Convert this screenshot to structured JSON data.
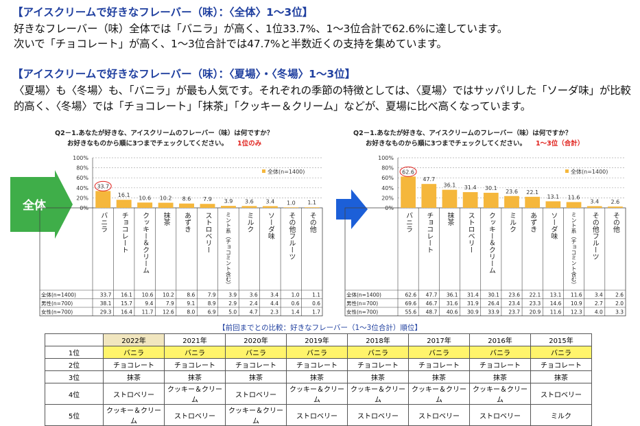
{
  "sections": [
    {
      "heading": "【アイスクリームで好きなフレーバー（味）：〈全体〉1～3位】",
      "lines": [
        "好きなフレーバー（味）全体では「バニラ」が高く、1位33.7%、1～3位合計で62.6%に達しています。",
        "次いで「チョコレート」が高く、1～3位合計では47.7%と半数近くの支持を集めています。"
      ]
    },
    {
      "heading": "【アイスクリームで好きなフレーバー（味）：〈夏場〉・〈冬場〉1～3位】",
      "lines": [
        "〈夏場〉も〈冬場〉も、「バニラ」が最も人気です。それぞれの季節の特徴としては、〈夏場〉ではサッパリした「ソーダ味」が比較",
        "的高く、〈冬場〉では「チョコレート」「抹茶」「クッキー＆クリーム」などが、夏場に比べ高くなっています。"
      ]
    }
  ],
  "badge": "全体",
  "charts": [
    {
      "type": "bar",
      "title_lines": [
        "Q2－1.あなたが好きな、アイスクリームのフレーバー（味）は何ですか？",
        "お好きなものから順に3つまでチェックしてください。"
      ],
      "note": "1位のみ",
      "legend": "全体(n=1400)",
      "color": "#f5b73c",
      "categories": [
        "バニラ",
        "チョコレート",
        "クッキー＆クリーム",
        "抹茶",
        "あずき",
        "ストロベリー",
        "ミント系（チョコミント含む）",
        "ミルク",
        "ソーダ味",
        "その他フルーツ",
        "その他"
      ],
      "values": [
        33.7,
        16.1,
        10.6,
        10.2,
        8.6,
        7.9,
        3.9,
        3.6,
        3.4,
        1.0,
        1.1
      ],
      "value_labels": [
        "33.7",
        "16.1",
        "10.6",
        "10.2",
        "8.6",
        "7.9",
        "3.9",
        "3.6",
        "3.4",
        "1.0",
        "1.1"
      ],
      "ylim": [
        0,
        100
      ],
      "yticks": [
        {
          "value": 0,
          "label": "0%"
        },
        {
          "value": 20,
          "label": "20%"
        },
        {
          "value": 40,
          "label": "40%"
        },
        {
          "value": 60,
          "label": "60%"
        },
        {
          "value": 80,
          "label": "80%"
        },
        {
          "value": 100,
          "label": "100%"
        }
      ],
      "grid": true,
      "table": [
        {
          "label": "全体(n=1400)",
          "values": [
            "33.7",
            "16.1",
            "10.6",
            "10.2",
            "8.6",
            "7.9",
            "3.9",
            "3.6",
            "3.4",
            "1.0",
            "1.1"
          ]
        },
        {
          "label": "男性(n=700)",
          "values": [
            "38.1",
            "15.7",
            "9.4",
            "7.9",
            "9.1",
            "8.9",
            "2.9",
            "2.4",
            "4.4",
            "0.6",
            "0.6"
          ]
        },
        {
          "label": "女性(n=700)",
          "values": [
            "29.3",
            "16.4",
            "11.7",
            "12.6",
            "8.0",
            "6.9",
            "5.0",
            "4.7",
            "2.3",
            "1.4",
            "1.7"
          ]
        }
      ]
    },
    {
      "type": "bar",
      "title_lines": [
        "Q2－1.あなたが好きな、アイスクリームのフレーバー（味）は何ですか？",
        "お好きなものから順に3つまでチェックしてください。"
      ],
      "note": "1～3位（合計）",
      "legend": "全体(n=1400)",
      "color": "#f5b73c",
      "categories": [
        "バニラ",
        "チョコレート",
        "抹茶",
        "ストロベリー",
        "クッキー＆クリーム",
        "ミルク",
        "あずき",
        "ソーダ味",
        "ミント系（チョコミント含む）",
        "その他フルーツ",
        "その他"
      ],
      "values": [
        62.6,
        47.7,
        36.1,
        31.4,
        30.1,
        23.6,
        22.1,
        13.1,
        11.6,
        3.4,
        2.6
      ],
      "value_labels": [
        "62.6",
        "47.7",
        "36.1",
        "31.4",
        "30.1",
        "23.6",
        "22.1",
        "13.1",
        "11.6",
        "3.4",
        "2.6"
      ],
      "ylim": [
        0,
        100
      ],
      "yticks": [
        {
          "value": 0,
          "label": "0%"
        },
        {
          "value": 20,
          "label": "20%"
        },
        {
          "value": 40,
          "label": "40%"
        },
        {
          "value": 60,
          "label": "60%"
        },
        {
          "value": 80,
          "label": "80%"
        },
        {
          "value": 100,
          "label": "100%"
        }
      ],
      "grid": true,
      "table": [
        {
          "label": "全体(n=1400)",
          "values": [
            "62.6",
            "47.7",
            "36.1",
            "31.4",
            "30.1",
            "23.6",
            "22.1",
            "13.1",
            "11.6",
            "3.4",
            "2.6"
          ]
        },
        {
          "label": "男性(n=700)",
          "values": [
            "69.6",
            "46.7",
            "31.6",
            "31.9",
            "26.4",
            "23.4",
            "23.3",
            "14.6",
            "10.9",
            "2.7",
            "2.0"
          ]
        },
        {
          "label": "女性(n=700)",
          "values": [
            "55.6",
            "48.7",
            "40.6",
            "30.9",
            "33.9",
            "23.7",
            "20.9",
            "11.6",
            "12.3",
            "4.0",
            "3.3"
          ]
        }
      ]
    }
  ],
  "ranking": {
    "title": "【前回までとの比較：好きなフレーバー（1～3位合計）順位】",
    "years": [
      "2022年",
      "2021年",
      "2020年",
      "2019年",
      "2018年",
      "2017年",
      "2016年",
      "2015年"
    ],
    "rows": [
      {
        "rank": "1位",
        "items": [
          "バニラ",
          "バニラ",
          "バニラ",
          "バニラ",
          "バニラ",
          "バニラ",
          "バニラ",
          "バニラ"
        ]
      },
      {
        "rank": "2位",
        "items": [
          "チョコレート",
          "チョコレート",
          "チョコレート",
          "チョコレート",
          "チョコレート",
          "チョコレート",
          "チョコレート",
          "チョコレート"
        ]
      },
      {
        "rank": "3位",
        "items": [
          "抹茶",
          "抹茶",
          "抹茶",
          "抹茶",
          "抹茶",
          "抹茶",
          "抹茶",
          "抹茶"
        ]
      },
      {
        "rank": "4位",
        "items": [
          "ストロベリー",
          "クッキー＆クリーム",
          "ストロベリー",
          "クッキー＆クリーム",
          "クッキー＆クリーム",
          "クッキー＆クリーム",
          "クッキー＆クリーム",
          "ストロベリー"
        ]
      },
      {
        "rank": "5位",
        "items": [
          "クッキー＆クリーム",
          "ストロベリー",
          "クッキー＆クリーム",
          "ストロベリー",
          "ストロベリー",
          "ストロベリー",
          "ストロベリー",
          "ミルク"
        ]
      }
    ]
  }
}
